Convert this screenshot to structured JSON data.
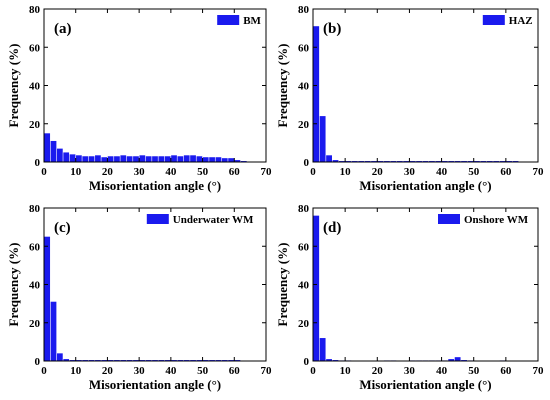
{
  "colors": {
    "bar": "#1a1aee",
    "axis": "#000000"
  },
  "chart_data": [
    {
      "type": "bar",
      "panel_label": "(a)",
      "legend": "BM",
      "legend_placement": "top-right",
      "xlabel": "Misorientation angle (°)",
      "ylabel": "Frequency (%)",
      "xlim": [
        0,
        70
      ],
      "ylim": [
        0,
        80
      ],
      "xticks": [
        "0",
        "10",
        "20",
        "30",
        "40",
        "50",
        "60",
        "70"
      ],
      "yticks": [
        "0",
        "20",
        "40",
        "60",
        "80"
      ],
      "bin_width": 2,
      "x": [
        2,
        4,
        6,
        8,
        10,
        12,
        14,
        16,
        18,
        20,
        22,
        24,
        26,
        28,
        30,
        32,
        34,
        36,
        38,
        40,
        42,
        44,
        46,
        48,
        50,
        52,
        54,
        56,
        58,
        60,
        62,
        64
      ],
      "values": [
        15,
        11,
        7,
        5,
        4,
        3.5,
        3,
        3,
        3.5,
        2.5,
        3,
        3,
        3.5,
        3,
        3,
        3.5,
        3,
        3,
        3,
        3,
        3.5,
        3,
        3.5,
        3.5,
        3,
        2.5,
        2.5,
        2.5,
        2,
        2,
        1,
        0.5
      ]
    },
    {
      "type": "bar",
      "panel_label": "(b)",
      "legend": "HAZ",
      "legend_placement": "top-right",
      "xlabel": "Misorientation angle (°)",
      "ylabel": "Frequency (%)",
      "xlim": [
        0,
        70
      ],
      "ylim": [
        0,
        80
      ],
      "xticks": [
        "0",
        "10",
        "20",
        "30",
        "40",
        "50",
        "60",
        "70"
      ],
      "yticks": [
        "0",
        "20",
        "40",
        "60",
        "80"
      ],
      "bin_width": 2,
      "x": [
        2,
        4,
        6,
        8,
        10,
        12,
        14,
        16,
        18,
        20,
        22,
        24,
        26,
        28,
        30,
        32,
        34,
        36,
        38,
        40,
        42,
        44,
        46,
        48,
        50,
        52,
        54,
        56,
        58,
        60,
        62,
        64
      ],
      "values": [
        71,
        24,
        3.5,
        1,
        0.5,
        0.5,
        0.5,
        0.5,
        0.5,
        0.5,
        0.5,
        0.5,
        0.5,
        0.5,
        0.5,
        0.5,
        0.5,
        0.5,
        0.5,
        0.5,
        0.5,
        0.5,
        0.5,
        0.5,
        0.5,
        0.5,
        0.5,
        0.5,
        0.5,
        0.5,
        0.5,
        0.5
      ]
    },
    {
      "type": "bar",
      "panel_label": "(c)",
      "legend": "Underwater WM",
      "legend_placement": "top-right",
      "xlabel": "Misorientation angle (°)",
      "ylabel": "Frequency (%)",
      "xlim": [
        0,
        70
      ],
      "ylim": [
        0,
        80
      ],
      "xticks": [
        "0",
        "10",
        "20",
        "30",
        "40",
        "50",
        "60",
        "70"
      ],
      "yticks": [
        "0",
        "20",
        "40",
        "60",
        "80"
      ],
      "bin_width": 2,
      "x": [
        2,
        4,
        6,
        8,
        10,
        12,
        14,
        16,
        18,
        20,
        22,
        24,
        26,
        28,
        30,
        32,
        34,
        36,
        38,
        40,
        42,
        44,
        46,
        48,
        50,
        52,
        54,
        56,
        58,
        60,
        62
      ],
      "values": [
        65,
        31,
        4,
        1,
        0.5,
        0.5,
        0.5,
        0.5,
        0.5,
        0.5,
        0.5,
        0.5,
        0.5,
        0.5,
        0.5,
        0.5,
        0.5,
        0.5,
        0.5,
        0.5,
        0.5,
        0.5,
        0.5,
        0.5,
        0.5,
        0.5,
        0.5,
        0.5,
        0.5,
        0.5,
        0.5
      ]
    },
    {
      "type": "bar",
      "panel_label": "(d)",
      "legend": "Onshore WM",
      "legend_placement": "top-right",
      "xlabel": "Misorientation angle (°)",
      "ylabel": "Frequency (%)",
      "xlim": [
        0,
        70
      ],
      "ylim": [
        0,
        80
      ],
      "xticks": [
        "0",
        "10",
        "20",
        "30",
        "40",
        "50",
        "60",
        "70"
      ],
      "yticks": [
        "0",
        "20",
        "40",
        "60",
        "80"
      ],
      "bin_width": 2,
      "x": [
        2,
        4,
        6,
        8,
        10,
        12,
        14,
        16,
        18,
        20,
        22,
        24,
        26,
        28,
        30,
        32,
        34,
        36,
        38,
        40,
        42,
        44,
        46,
        48,
        50,
        52,
        54,
        56,
        58,
        60,
        62
      ],
      "values": [
        76,
        12,
        1,
        0.5,
        0.3,
        0.3,
        0.2,
        0.2,
        0.2,
        0.2,
        0.2,
        0.3,
        0.3,
        0.2,
        0.2,
        0.3,
        0.3,
        0.3,
        0.3,
        0.3,
        0.3,
        1,
        2,
        0.5,
        0.3,
        0.2,
        0.2,
        0.2,
        0.2,
        0.3,
        0.2
      ]
    }
  ]
}
